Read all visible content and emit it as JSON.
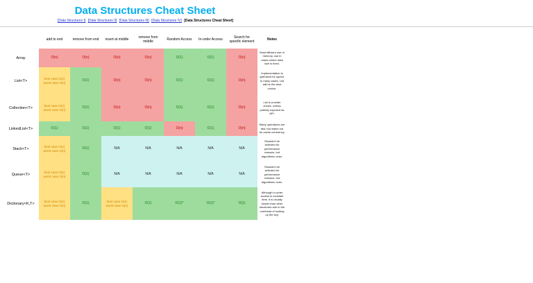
{
  "page": {
    "title": "Data Structures Cheat Sheet",
    "title_color": "#00AEEF"
  },
  "nav": {
    "links": [
      {
        "label": "[Data Structures I]"
      },
      {
        "label": "[Data Structures II]"
      },
      {
        "label": "[Data Structures III]"
      },
      {
        "label": "[Data Structures IV]"
      }
    ],
    "current": "[Data Structures Cheat Sheet]"
  },
  "colors": {
    "bad": {
      "bg": "#F5A2A2",
      "text": "#BB0000"
    },
    "good": {
      "bg": "#9EDC9E",
      "text": "#157A15"
    },
    "mixed": {
      "bg": "#FFE083",
      "text": "#CC8400"
    },
    "na": {
      "bg": "#CDF2F0",
      "text": "#222222"
    }
  },
  "table": {
    "columns": [
      "",
      "add to end",
      "remove from end",
      "insert at middle",
      "remove from middle",
      "Random Access",
      "In-order Access",
      "Search for specific element",
      "Notes"
    ],
    "rows": [
      {
        "label": "Array",
        "cells": [
          {
            "text": "O(n)",
            "type": "bad"
          },
          {
            "text": "O(n)",
            "type": "bad"
          },
          {
            "text": "O(n)",
            "type": "bad"
          },
          {
            "text": "O(n)",
            "type": "bad"
          },
          {
            "text": "O(1)",
            "type": "good"
          },
          {
            "text": "O(1)",
            "type": "good"
          },
          {
            "text": "O(n)",
            "type": "bad"
          }
        ],
        "notes": "Most efficient use of memory, use in cases where data size is fixed."
      },
      {
        "label": "List<T>",
        "cells": [
          {
            "text": "best case O(1) worst case O(n)",
            "type": "mixed"
          },
          {
            "text": "O(1)",
            "type": "good"
          },
          {
            "text": "O(n)",
            "type": "bad"
          },
          {
            "text": "O(n)",
            "type": "bad"
          },
          {
            "text": "O(1)",
            "type": "good"
          },
          {
            "text": "O(1)",
            "type": "good"
          },
          {
            "text": "O(n)",
            "type": "bad"
          }
        ],
        "notes": "Implementation is optimized for speed. In many cases, List will be the best choice."
      },
      {
        "label": "Collection<T>",
        "cells": [
          {
            "text": "best case O(1) worst case O(n)",
            "type": "mixed"
          },
          {
            "text": "O(1)",
            "type": "good"
          },
          {
            "text": "O(n)",
            "type": "bad"
          },
          {
            "text": "O(n)",
            "type": "bad"
          },
          {
            "text": "O(1)",
            "type": "good"
          },
          {
            "text": "O(1)",
            "type": "good"
          },
          {
            "text": "O(n)",
            "type": "bad"
          }
        ],
        "notes": "List is a better choice, unless publicly exposed as API."
      },
      {
        "label": "LinkedList<T>",
        "cells": [
          {
            "text": "O(1)",
            "type": "good"
          },
          {
            "text": "O(1)",
            "type": "good"
          },
          {
            "text": "O(1)",
            "type": "good"
          },
          {
            "text": "O(1)",
            "type": "good"
          },
          {
            "text": "O(n)",
            "type": "bad"
          },
          {
            "text": "O(1)",
            "type": "good"
          },
          {
            "text": "O(n)",
            "type": "bad"
          }
        ],
        "notes": "Many operations are fast, but watch out for cache coherency."
      },
      {
        "label": "Stack<T>",
        "cells": [
          {
            "text": "best case O(1) worst case O(n)",
            "type": "mixed"
          },
          {
            "text": "O(1)",
            "type": "good"
          },
          {
            "text": "N/A",
            "type": "na"
          },
          {
            "text": "N/A",
            "type": "na"
          },
          {
            "text": "N/A",
            "type": "na"
          },
          {
            "text": "N/A",
            "type": "na"
          },
          {
            "text": "N/A",
            "type": "na"
          }
        ],
        "notes": "Shouldn't be selected for performance reasons, but algorithmic ones."
      },
      {
        "label": "Queue<T>",
        "cells": [
          {
            "text": "best case O(1) worst case O(n)",
            "type": "mixed"
          },
          {
            "text": "O(1)",
            "type": "good"
          },
          {
            "text": "N/A",
            "type": "na"
          },
          {
            "text": "N/A",
            "type": "na"
          },
          {
            "text": "N/A",
            "type": "na"
          },
          {
            "text": "N/A",
            "type": "na"
          },
          {
            "text": "N/A",
            "type": "na"
          }
        ],
        "notes": "Shouldn't be selected for performance reasons, but algorithmic ones."
      },
      {
        "label": "Dictionary<K,T>",
        "cells": [
          {
            "text": "best case O(1) worst case O(n)",
            "type": "mixed"
          },
          {
            "text": "O(1)",
            "type": "good"
          },
          {
            "text": "best case O(1) worst case O(n)",
            "type": "mixed"
          },
          {
            "text": "O(1)",
            "type": "good"
          },
          {
            "text": "O(1)*",
            "type": "good"
          },
          {
            "text": "O(1)*",
            "type": "good"
          },
          {
            "text": "O(1)",
            "type": "good"
          }
        ],
        "notes": "Although in-order access is constant time, it is usually slower than other structures due to the overhead of looking up the key."
      }
    ]
  }
}
